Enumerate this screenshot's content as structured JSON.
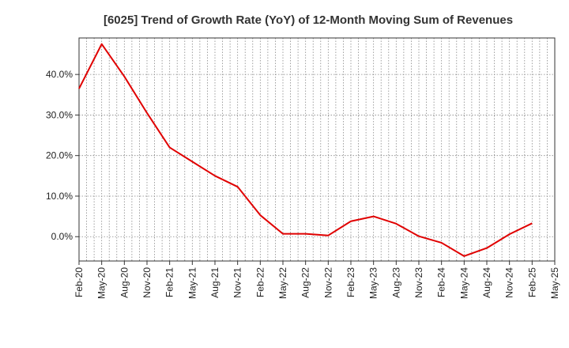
{
  "chart_data": {
    "type": "line",
    "title": "[6025]  Trend of Growth Rate (YoY) of 12-Month Moving Sum of Revenues",
    "xlabel": "",
    "ylabel": "",
    "x_tick_labels": [
      "Feb-20",
      "May-20",
      "Aug-20",
      "Nov-20",
      "Feb-21",
      "May-21",
      "Aug-21",
      "Nov-21",
      "Feb-22",
      "May-22",
      "Aug-22",
      "Nov-22",
      "Feb-23",
      "May-23",
      "Aug-23",
      "Nov-23",
      "Feb-24",
      "May-24",
      "Aug-24",
      "Nov-24",
      "Feb-25",
      "May-25"
    ],
    "y_ticks": [
      0,
      10,
      20,
      30,
      40
    ],
    "y_tick_labels": [
      "0.0%",
      "10.0%",
      "20.0%",
      "30.0%",
      "40.0%"
    ],
    "ylim": [
      -6.0,
      49.0
    ],
    "grid": true,
    "series": [
      {
        "color": "#e00000",
        "x": [
          "Feb-20",
          "May-20",
          "Aug-20",
          "Nov-20",
          "Feb-21",
          "May-21",
          "Aug-21",
          "Nov-21",
          "Feb-22",
          "May-22",
          "Aug-22",
          "Nov-22",
          "Feb-23",
          "May-23",
          "Aug-23",
          "Nov-23",
          "Feb-24",
          "May-24",
          "Aug-24",
          "Nov-24",
          "Feb-25"
        ],
        "values": [
          36.5,
          47.5,
          39.5,
          30.5,
          22.0,
          18.5,
          15.0,
          12.3,
          5.3,
          0.7,
          0.7,
          0.3,
          3.8,
          5.0,
          3.2,
          0.1,
          -1.5,
          -4.8,
          -2.8,
          0.6,
          3.3
        ]
      }
    ]
  }
}
